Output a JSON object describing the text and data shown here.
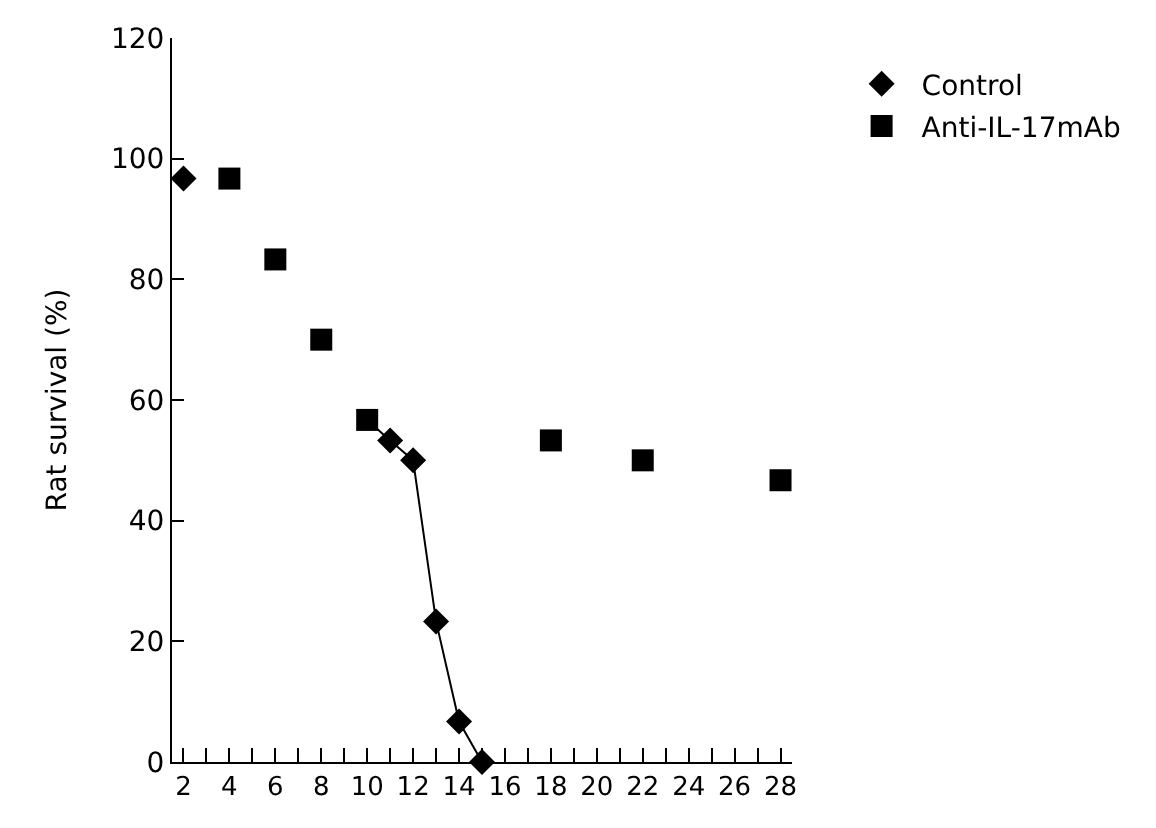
{
  "chart_data": {
    "type": "scatter",
    "ylabel": "Rat survival (%)",
    "xlim": [
      1.5,
      28.5
    ],
    "ylim": [
      0,
      120
    ],
    "xticks": [
      2,
      {
        "value": 3,
        "label": null
      },
      4,
      {
        "value": 5,
        "label": null
      },
      6,
      {
        "value": 7,
        "label": null
      },
      8,
      {
        "value": 9,
        "label": null
      },
      10,
      {
        "value": 11,
        "label": null
      },
      12,
      {
        "value": 13,
        "label": null
      },
      14,
      {
        "value": 15,
        "label": null
      },
      16,
      {
        "value": 17,
        "label": null
      },
      18,
      {
        "value": 19,
        "label": null
      },
      20,
      {
        "value": 21,
        "label": null
      },
      22,
      {
        "value": 23,
        "label": null
      },
      24,
      {
        "value": 25,
        "label": null
      },
      26,
      {
        "value": 27,
        "label": null
      },
      28
    ],
    "yticks": [
      0,
      20,
      40,
      60,
      80,
      100,
      120
    ],
    "grid": false,
    "legend": "top right",
    "series": [
      {
        "type": "line",
        "color": "#000000",
        "marker": "none",
        "x": [
          10,
          11,
          12,
          13,
          14,
          15
        ],
        "values": [
          56.7,
          53.3,
          50,
          23.3,
          6.7,
          0
        ]
      },
      {
        "name": "Control",
        "color": "#000000",
        "marker": "diamond",
        "x": [
          2,
          4,
          6,
          8,
          10,
          11,
          12,
          13,
          14,
          15
        ],
        "values": [
          96.7,
          null,
          null,
          null,
          null,
          53.3,
          50,
          23.3,
          6.7,
          0
        ]
      },
      {
        "name": "Anti-IL-17mAb",
        "color": "#000000",
        "marker": "square",
        "x": [
          4,
          6,
          8,
          10,
          18,
          22,
          28
        ],
        "values": [
          96.7,
          83.3,
          70,
          56.7,
          53.3,
          50,
          46.7
        ]
      }
    ]
  }
}
